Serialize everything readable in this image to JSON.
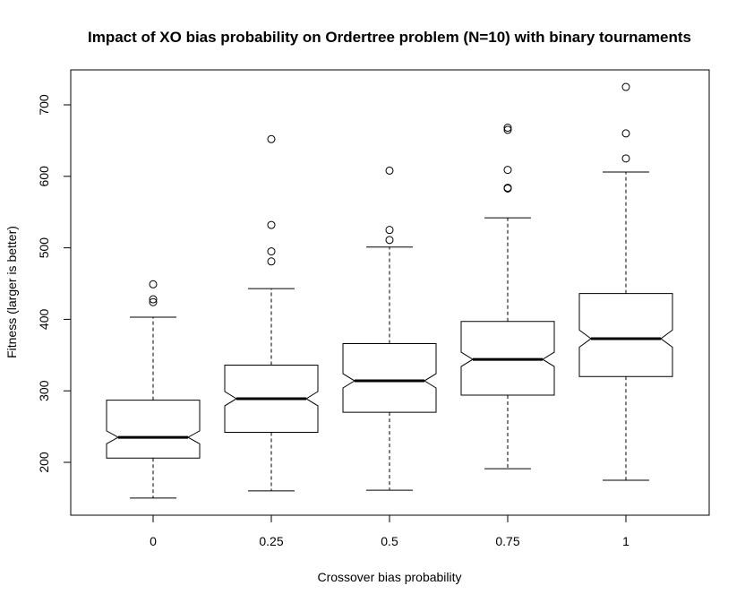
{
  "chart_data": {
    "type": "boxplot",
    "title": "Impact of XO bias probability on Ordertree problem (N=10) with binary tournaments",
    "xlabel": "Crossover bias probability",
    "ylabel": "Fitness (larger is better)",
    "categories": [
      "0",
      "0.25",
      "0.5",
      "0.75",
      "1"
    ],
    "ylim": [
      125,
      750
    ],
    "yticks": [
      200,
      300,
      400,
      500,
      600,
      700
    ],
    "notched": true,
    "grid": false,
    "boxes": [
      {
        "category": "0",
        "whisker_low": 150,
        "q1": 206,
        "notch_low": 226,
        "median": 235,
        "notch_high": 244,
        "q3": 287,
        "whisker_high": 403,
        "outliers": [
          449,
          428,
          424
        ]
      },
      {
        "category": "0.25",
        "whisker_low": 160,
        "q1": 242,
        "notch_low": 279,
        "median": 289,
        "notch_high": 299,
        "q3": 336,
        "whisker_high": 443,
        "outliers": [
          652,
          532,
          495,
          481
        ]
      },
      {
        "category": "0.5",
        "whisker_low": 161,
        "q1": 270,
        "notch_low": 304,
        "median": 314,
        "notch_high": 324,
        "q3": 366,
        "whisker_high": 501,
        "outliers": [
          608,
          525,
          511
        ]
      },
      {
        "category": "0.75",
        "whisker_low": 191,
        "q1": 294,
        "notch_low": 334,
        "median": 344,
        "notch_high": 354,
        "q3": 397,
        "whisker_high": 542,
        "outliers": [
          668,
          665,
          609,
          584,
          583
        ]
      },
      {
        "category": "1",
        "whisker_low": 175,
        "q1": 320,
        "notch_low": 361,
        "median": 373,
        "notch_high": 385,
        "q3": 436,
        "whisker_high": 606,
        "outliers": [
          725,
          660,
          625
        ]
      }
    ]
  }
}
